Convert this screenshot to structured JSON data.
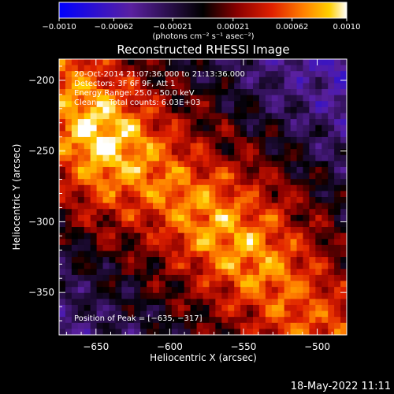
{
  "chart_data": {
    "type": "heatmap",
    "title": "Reconstructed RHESSI Image",
    "xlabel": "Heliocentric X (arcsec)",
    "ylabel": "Heliocentric Y (arcsec)",
    "xlim": [
      -675,
      -480
    ],
    "ylim": [
      -380,
      -185
    ],
    "x_ticks": [
      -650,
      -600,
      -550,
      -500
    ],
    "x_tick_labels": [
      "−650",
      "−600",
      "−550",
      "−500"
    ],
    "y_ticks": [
      -200,
      -250,
      -300,
      -350
    ],
    "y_tick_labels": [
      "−200",
      "−250",
      "−300",
      "−350"
    ],
    "grid": false,
    "colorbar": {
      "range": [
        -0.001,
        0.001
      ],
      "ticks": [
        -0.001,
        -0.00062,
        -0.00021,
        0.00021,
        0.00062,
        0.001
      ],
      "tick_labels": [
        "−0.0010",
        "−0.00062",
        "−0.00021",
        "0.00021",
        "0.00062",
        "0.0010"
      ],
      "unit_label": "(photons cm⁻² s⁻¹ asec⁻²)",
      "colors": [
        "#0000ff",
        "#5a20a0",
        "#000000",
        "#8a0000",
        "#e02000",
        "#ff8000",
        "#ffd000",
        "#ffffff"
      ]
    },
    "annotations": [
      "20-Oct-2014 21:07:36.000 to 21:13:36.000",
      "Detectors: 3F 6F 9F, Att 1",
      "Energy Range: 25.0 - 50.0 keV",
      "Clean     Total counts: 6.03E+03"
    ],
    "peak_label": "Position of Peak = [−635, −317]",
    "footer_timestamp": "18-May-2022 11:11"
  }
}
